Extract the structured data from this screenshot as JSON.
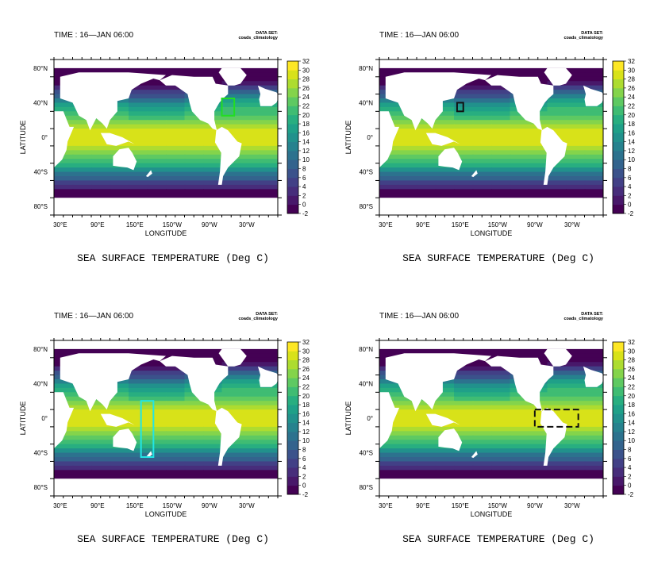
{
  "panels": [
    {
      "time_label": "TIME : 16—JAN 06:00",
      "dataset_label": "DATA SET:",
      "dataset_name": "coads_climatology",
      "caption": "SEA SURFACE TEMPERATURE (Deg C)",
      "xlabel": "LONGITUDE",
      "ylabel": "LATITUDE",
      "region_box": {
        "style": "solid",
        "color": "#22dd22",
        "lon": [
          -70,
          -50
        ],
        "lat": [
          25,
          45
        ]
      }
    },
    {
      "time_label": "TIME : 16—JAN 06:00",
      "dataset_label": "DATA SET:",
      "dataset_name": "coads_climatology",
      "caption": "SEA SURFACE TEMPERATURE (Deg C)",
      "xlabel": "LONGITUDE",
      "ylabel": "LATITUDE",
      "region_box": {
        "style": "solid",
        "color": "#111111",
        "lon": [
          145,
          155
        ],
        "lat": [
          30,
          40
        ]
      }
    },
    {
      "time_label": "TIME : 16—JAN 06:00",
      "dataset_label": "DATA SET:",
      "dataset_name": "coads_climatology",
      "caption": "SEA SURFACE TEMPERATURE (Deg C)",
      "xlabel": "LONGITUDE",
      "ylabel": "LATITUDE",
      "region_box": {
        "style": "solid",
        "color": "#22e5e5",
        "lon": [
          160,
          180
        ],
        "lat": [
          -45,
          20
        ]
      }
    },
    {
      "time_label": "TIME : 16—JAN 06:00",
      "dataset_label": "DATA SET:",
      "dataset_name": "coads_climatology",
      "caption": "SEA SURFACE TEMPERATURE (Deg C)",
      "xlabel": "LONGITUDE",
      "ylabel": "LATITUDE",
      "region_box": {
        "style": "dashed",
        "color": "#111111",
        "lon": [
          -90,
          -20
        ],
        "lat": [
          -10,
          10
        ]
      }
    }
  ],
  "x_ticks": [
    "30°E",
    "90°E",
    "150°E",
    "150°W",
    "90°W",
    "30°W"
  ],
  "x_tick_lons": [
    30,
    90,
    150,
    210,
    270,
    330
  ],
  "y_ticks": [
    "80°N",
    "40°N",
    "0°",
    "40°S",
    "80°S"
  ],
  "y_tick_lats": [
    80,
    40,
    0,
    -40,
    -80
  ],
  "lon_range": [
    20,
    380
  ],
  "lat_range": [
    -90,
    90
  ],
  "colorbar": {
    "labels": [
      "32",
      "30",
      "28",
      "26",
      "24",
      "22",
      "20",
      "18",
      "16",
      "14",
      "12",
      "10",
      "8",
      "6",
      "4",
      "2",
      "0",
      "-2"
    ],
    "min": -2,
    "max": 32,
    "colors": [
      "#440154",
      "#48186a",
      "#472d7b",
      "#424086",
      "#3b528b",
      "#33638d",
      "#2c728e",
      "#26828e",
      "#21918c",
      "#1fa088",
      "#28ae80",
      "#3fbc73",
      "#5ec962",
      "#84d44b",
      "#addc30",
      "#d8e219",
      "#fde725"
    ]
  }
}
